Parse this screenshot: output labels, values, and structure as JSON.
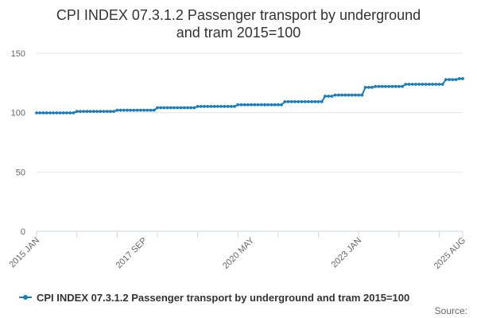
{
  "colors": {
    "series": "#1a7dbd",
    "grid": "#e6e6e6",
    "axis": "#ccd6eb"
  },
  "title_lines": [
    "CPI INDEX 07.3.1.2 Passenger transport by underground",
    "and tram 2015=100"
  ],
  "source_label": "Source:",
  "chart_data": {
    "type": "line",
    "title": "CPI INDEX 07.3.1.2 Passenger transport by underground and tram 2015=100",
    "xlabel": "",
    "ylabel": "",
    "ylim": [
      0,
      150
    ],
    "yticks": [
      0,
      50,
      100,
      150
    ],
    "grid": true,
    "legend_position": "bottom",
    "x_tick_labels": [
      "2015 JAN",
      "2017 SEP",
      "2020 MAY",
      "2023 JAN",
      "2025 AUG"
    ],
    "series": [
      {
        "name": "CPI INDEX 07.3.1.2 Passenger transport by underground and tram 2015=100",
        "x_start": "2015-01",
        "x_end": "2025-08",
        "frequency": "monthly",
        "steps": [
          {
            "from": "2015-01",
            "value": 99.8
          },
          {
            "from": "2016-01",
            "value": 101.0
          },
          {
            "from": "2017-01",
            "value": 102.0
          },
          {
            "from": "2018-01",
            "value": 104.1
          },
          {
            "from": "2019-01",
            "value": 105.2
          },
          {
            "from": "2020-01",
            "value": 106.6
          },
          {
            "from": "2021-03",
            "value": 109.2
          },
          {
            "from": "2022-03",
            "value": 113.8
          },
          {
            "from": "2022-06",
            "value": 114.8
          },
          {
            "from": "2023-03",
            "value": 121.3
          },
          {
            "from": "2023-06",
            "value": 122.0
          },
          {
            "from": "2024-03",
            "value": 123.9
          },
          {
            "from": "2025-03",
            "value": 127.8
          },
          {
            "from": "2025-07",
            "value": 128.6
          }
        ]
      }
    ]
  }
}
